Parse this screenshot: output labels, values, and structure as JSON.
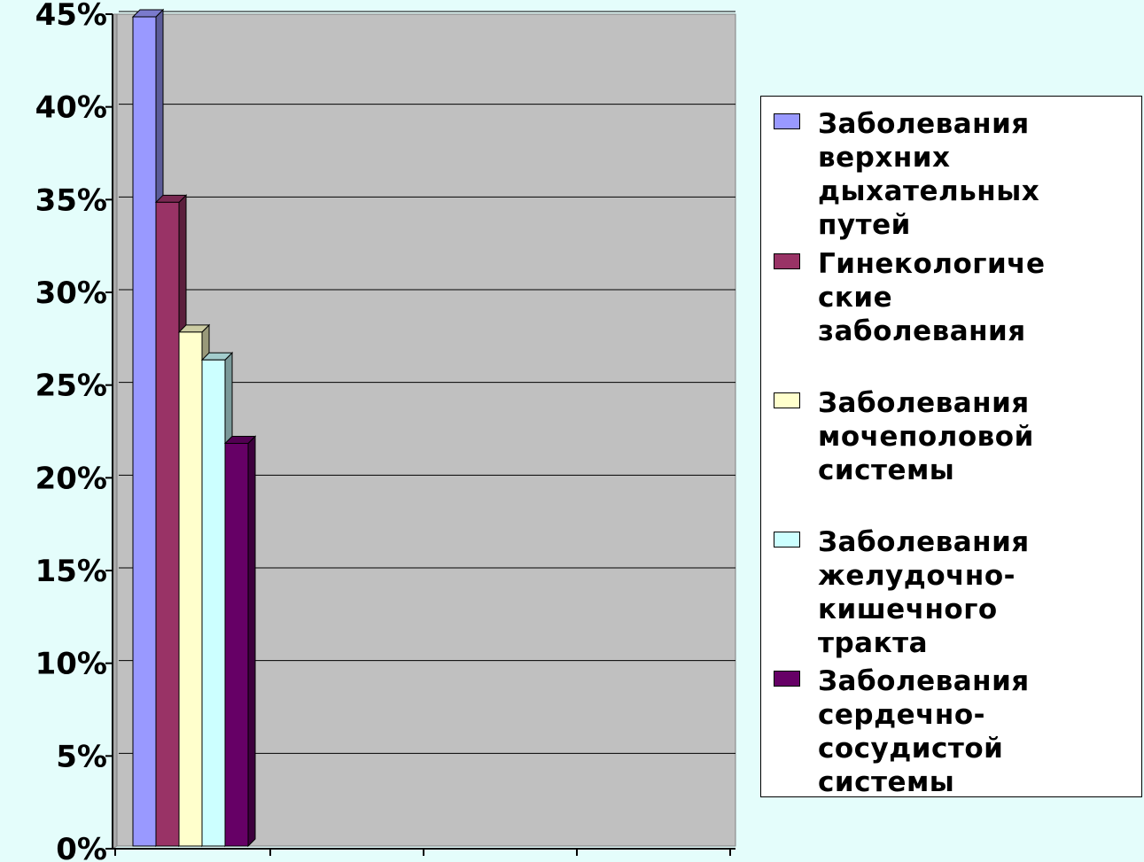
{
  "chart_data": {
    "type": "bar",
    "title": "",
    "xlabel": "",
    "ylabel": "",
    "ylim": [
      0,
      45
    ],
    "y_ticks": [
      "0%",
      "5%",
      "10%",
      "15%",
      "20%",
      "25%",
      "30%",
      "35%",
      "40%",
      "45%"
    ],
    "grid": true,
    "legend_position": "right",
    "series": [
      {
        "name": " Заболевания верхних дыхательных путей",
        "values": [
          45
        ],
        "color": "#9999ff"
      },
      {
        "name": "Гинекологические заболевания",
        "values": [
          35
        ],
        "color": "#993366"
      },
      {
        "name": "Заболевания мочеполовой системы",
        "values": [
          28
        ],
        "color": "#ffffcc"
      },
      {
        "name": "Заболевания желудочно-кишечного тракта",
        "values": [
          26.5
        ],
        "color": "#ccffff"
      },
      {
        "name": "Заболевания сердечно-сосудистой системы",
        "values": [
          22
        ],
        "color": "#660066"
      }
    ]
  },
  "legend": {
    "items": [
      {
        "label": " Заболевания\nверхних\nдыхательных\nпутей"
      },
      {
        "label": "Гинекологиче\nские\nзаболевания"
      },
      {
        "label": "Заболевания\nмочеполовой\nсистемы"
      },
      {
        "label": "Заболевания\nжелудочно-\nкишечного\nтракта"
      },
      {
        "label": "Заболевания\nсердечно-\nсосудистой\nсистемы"
      }
    ]
  },
  "colors": {
    "page_background": "#e4fdfb",
    "plot_background": "#c0c0c0",
    "wall_side": "#a8a8a8",
    "gridline": "#000000"
  }
}
